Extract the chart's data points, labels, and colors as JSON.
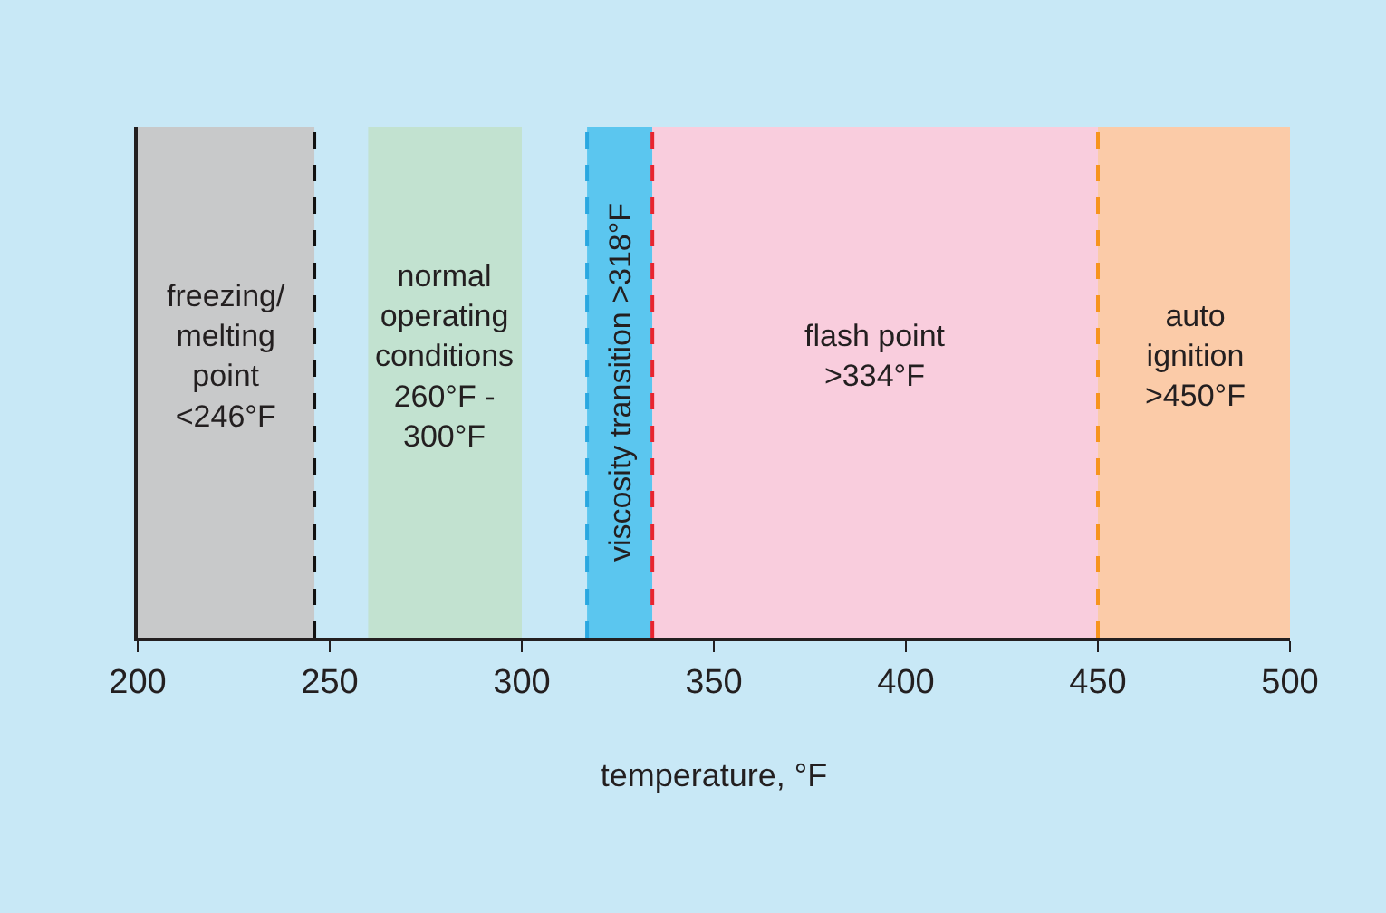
{
  "chart_data": {
    "type": "bar",
    "orientation": "horizontal",
    "xlabel": "temperature, °F",
    "categories": [
      null
    ],
    "tick_labels": "x",
    "xlim": [
      200,
      500
    ],
    "xticks": [
      200,
      250,
      300,
      350,
      400,
      450,
      500
    ],
    "series": [
      {
        "name": "freezing/\nmelting\npoint\n<246°F",
        "color": "#c8c9ca",
        "base": [
          200
        ],
        "values": [
          46
        ]
      },
      {
        "name": "normal\noperating\nconditions\n260°F -\n300°F",
        "color": "#c2e2d0",
        "base": [
          260
        ],
        "values": [
          40
        ]
      },
      {
        "name": "viscosity transition >318°F",
        "color": "#5bc6ef",
        "base": [
          317
        ],
        "values": [
          17
        ]
      },
      {
        "name": "flash point\n>334°F",
        "color": "#f9cddd",
        "base": [
          334
        ],
        "values": [
          116
        ]
      },
      {
        "name": "auto\nignition\n>450°F",
        "color": "#fbcba8",
        "base": [
          450
        ],
        "values": [
          50
        ]
      }
    ],
    "ref_lines": [
      {
        "axis": "x",
        "value": 246,
        "color": "#111111",
        "line_style": "dashed"
      },
      {
        "axis": "x",
        "value": 317,
        "color": "#2aa7e0",
        "line_style": "dashed"
      },
      {
        "axis": "x",
        "value": 334,
        "color": "#e8242e",
        "line_style": "dashed"
      },
      {
        "axis": "x",
        "value": 450,
        "color": "#f7941d",
        "line_style": "dashed"
      }
    ]
  }
}
